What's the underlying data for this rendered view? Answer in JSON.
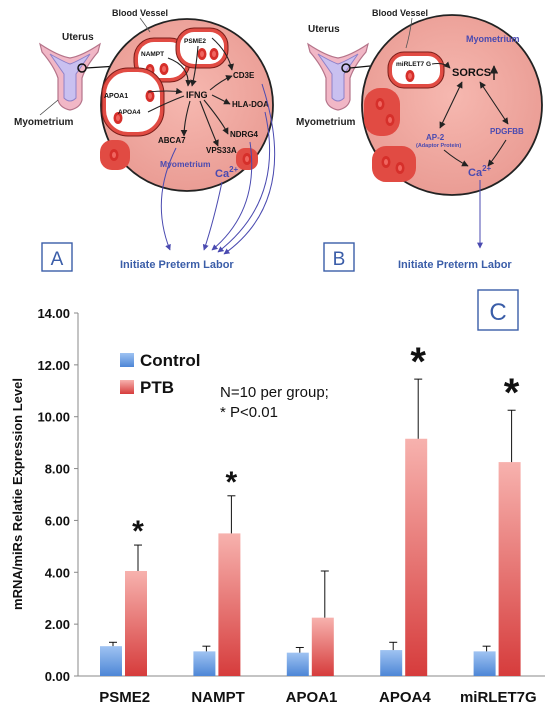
{
  "panel_a": {
    "letter": "A",
    "uterus_label": "Uterus",
    "myometrium_label": "Myometrium",
    "blood_vessel_label": "Blood Vessel",
    "inner_myometrium_label": "Myometrium",
    "genes": {
      "nampt": "NAMPT",
      "psme2": "PSME2",
      "apoa1": "APOA1",
      "apoa4": "APOA4",
      "ifng": "IFNG",
      "cd3e": "CD3E",
      "hla_doa": "HLA-DOA",
      "abca7": "ABCA7",
      "ndrg4": "NDRG4",
      "vps33a": "VPS33A"
    },
    "ion": "Ca",
    "ion_charge": "2+",
    "outcome": "Initiate Preterm Labor"
  },
  "panel_b": {
    "letter": "B",
    "uterus_label": "Uterus",
    "myometrium_label": "Myometrium",
    "blood_vessel_label": "Blood Vessel",
    "inner_myometrium_label": "Myometrium",
    "mirna": "miRLET7 G",
    "sorcs": "SORCS",
    "ap2": "AP-2",
    "ap2_note": "(Adaptor Protein)",
    "pdgfbb": "PDGFBB",
    "ion": "Ca",
    "ion_charge": "2+",
    "outcome": "Initiate Preterm Labor"
  },
  "panel_c": {
    "letter": "C",
    "annotation_line1": "N=10 per group;",
    "annotation_line2": "* P<0.01"
  },
  "colors": {
    "tissue": "#f2a9a1",
    "vessel_red": "#e0403a",
    "arrow_blue": "#4a4ab0",
    "control_bar": "#6fa0e0",
    "ptb_bar": "#e05a5a"
  },
  "chart_data": {
    "type": "bar",
    "ylabel": "mRNA/miRs Relatie Expression Level",
    "ylim": [
      0,
      14
    ],
    "yticks": [
      "0.00",
      "2.00",
      "4.00",
      "6.00",
      "8.00",
      "10.00",
      "12.00",
      "14.00"
    ],
    "categories": [
      "PSME2",
      "NAMPT",
      "APOA1",
      "APOA4",
      "miRLET7G"
    ],
    "series": [
      {
        "name": "Control",
        "values": [
          1.15,
          0.95,
          0.9,
          1.0,
          0.95
        ],
        "errors": [
          0.15,
          0.2,
          0.2,
          0.3,
          0.2
        ]
      },
      {
        "name": "PTB",
        "values": [
          4.05,
          5.5,
          2.25,
          9.15,
          8.25
        ],
        "errors": [
          1.0,
          1.45,
          1.8,
          2.3,
          2.0
        ]
      }
    ],
    "significance": [
      "*",
      "*",
      "",
      "*",
      "*"
    ],
    "legend_position": "top-left",
    "grid": false
  }
}
